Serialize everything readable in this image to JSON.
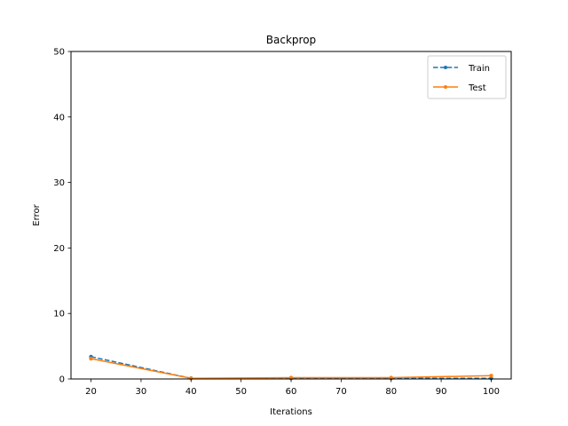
{
  "chart_data": {
    "type": "line",
    "title": "Backprop",
    "xlabel": "Iterations",
    "ylabel": "Error",
    "xlim": [
      16,
      104
    ],
    "ylim": [
      0,
      50
    ],
    "x_ticks": [
      20,
      30,
      40,
      50,
      60,
      70,
      80,
      90,
      100
    ],
    "y_ticks": [
      0,
      10,
      20,
      30,
      40,
      50
    ],
    "grid": false,
    "legend_position": "top-right",
    "series": [
      {
        "name": "Train",
        "x": [
          20,
          40,
          60,
          80,
          100
        ],
        "values": [
          3.4,
          0.1,
          0.1,
          0.1,
          0.1
        ],
        "color": "#1f77b4",
        "line_style": "dashed",
        "marker": "point"
      },
      {
        "name": "Test",
        "x": [
          20,
          40,
          60,
          80,
          100
        ],
        "values": [
          3.1,
          0.1,
          0.2,
          0.2,
          0.5
        ],
        "color": "#ff7f0e",
        "line_style": "solid",
        "marker": "point"
      }
    ]
  }
}
